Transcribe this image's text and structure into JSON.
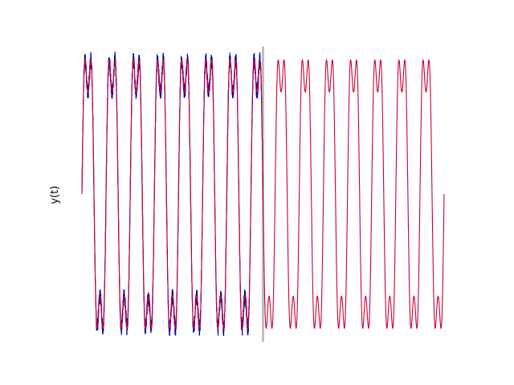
{
  "chart_data": {
    "type": "line",
    "title": "",
    "xlabel": "",
    "ylabel": "y(t)",
    "axes_visible": false,
    "grid": false,
    "legend": "none",
    "xlim": [
      0,
      30
    ],
    "ylim": [
      -1.1,
      1.1
    ],
    "vertical_marker": {
      "x": 15,
      "color": "#bfbfbf"
    },
    "signal_model": {
      "period": 2.0,
      "dominant_frequency_hz": 0.5,
      "harmonic_3_amplitude_ratio": 0.3,
      "peak_amplitude": 1.0,
      "noise_until_x": 15
    },
    "series": [
      {
        "role": "noisy-signal",
        "color": "#0000aa",
        "x_range": [
          0,
          15
        ],
        "noise_level": 0.06
      },
      {
        "role": "fitted-signal",
        "color": "#cc0033",
        "x_range": [
          0,
          30
        ],
        "noise_level": 0
      }
    ]
  }
}
